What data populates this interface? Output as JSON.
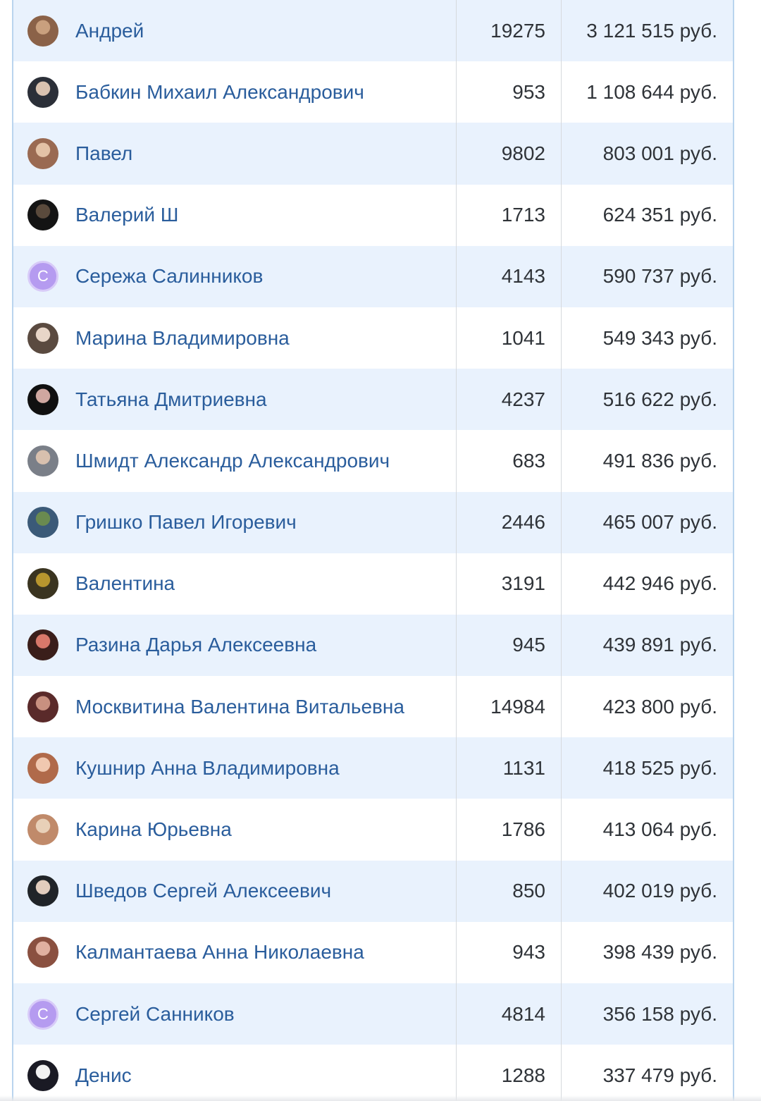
{
  "currency_suffix": "руб.",
  "rows": [
    {
      "name": "Андрей",
      "count": "19275",
      "sum": "3 121 515 руб.",
      "avatar": {
        "type": "photo",
        "colors": [
          "#8b6248",
          "#c9a07e"
        ]
      }
    },
    {
      "name": "Бабкин Михаил Александрович",
      "count": "953",
      "sum": "1 108 644 руб.",
      "avatar": {
        "type": "photo",
        "colors": [
          "#2b2f38",
          "#d9c2b0"
        ]
      }
    },
    {
      "name": "Павел",
      "count": "9802",
      "sum": "803 001 руб.",
      "avatar": {
        "type": "photo",
        "colors": [
          "#9a6a52",
          "#e3c2a6"
        ]
      }
    },
    {
      "name": "Валерий Ш",
      "count": "1713",
      "sum": "624 351 руб.",
      "avatar": {
        "type": "photo",
        "colors": [
          "#141414",
          "#5a4a3c"
        ]
      }
    },
    {
      "name": "Сережа Салинников",
      "count": "4143",
      "sum": "590 737 руб.",
      "avatar": {
        "type": "letter",
        "letter": "С",
        "color": "#b59bf0"
      }
    },
    {
      "name": "Марина Владимировна",
      "count": "1041",
      "sum": "549 343 руб.",
      "avatar": {
        "type": "photo",
        "colors": [
          "#5a4a40",
          "#e8d6c8"
        ]
      }
    },
    {
      "name": "Татьяна Дмитриевна",
      "count": "4237",
      "sum": "516 622 руб.",
      "avatar": {
        "type": "photo",
        "colors": [
          "#101010",
          "#cfa7a0"
        ]
      }
    },
    {
      "name": "Шмидт Александр Александрович",
      "count": "683",
      "sum": "491 836 руб.",
      "avatar": {
        "type": "photo",
        "colors": [
          "#7a7f88",
          "#d8c0ae"
        ]
      }
    },
    {
      "name": "Гришко Павел Игоревич",
      "count": "2446",
      "sum": "465 007 руб.",
      "avatar": {
        "type": "photo",
        "colors": [
          "#3b5a78",
          "#6a8a50"
        ]
      }
    },
    {
      "name": "Валентина",
      "count": "3191",
      "sum": "442 946 руб.",
      "avatar": {
        "type": "photo",
        "colors": [
          "#3a3420",
          "#b8962e"
        ]
      }
    },
    {
      "name": "Разина Дарья Алексеевна",
      "count": "945",
      "sum": "439 891 руб.",
      "avatar": {
        "type": "photo",
        "colors": [
          "#3a1e1a",
          "#d8786a"
        ]
      }
    },
    {
      "name": "Москвитина Валентина Витальевна",
      "count": "14984",
      "sum": "423 800 руб.",
      "avatar": {
        "type": "photo",
        "colors": [
          "#5a2a2a",
          "#c89080"
        ]
      }
    },
    {
      "name": "Кушнир Анна Владимировна",
      "count": "1131",
      "sum": "418 525 руб.",
      "avatar": {
        "type": "photo",
        "colors": [
          "#b06a4a",
          "#f0c8b0"
        ]
      }
    },
    {
      "name": "Карина Юрьевна",
      "count": "1786",
      "sum": "413 064 руб.",
      "avatar": {
        "type": "photo",
        "colors": [
          "#c08a6a",
          "#e8d0b8"
        ]
      }
    },
    {
      "name": "Шведов Сергей Алексеевич",
      "count": "850",
      "sum": "402 019 руб.",
      "avatar": {
        "type": "photo",
        "colors": [
          "#202428",
          "#e2cdbd"
        ]
      }
    },
    {
      "name": "Калмантаева Анна Николаевна",
      "count": "943",
      "sum": "398 439 руб.",
      "avatar": {
        "type": "photo",
        "colors": [
          "#8a5040",
          "#e0b0a0"
        ]
      }
    },
    {
      "name": "Сергей Санников",
      "count": "4814",
      "sum": "356 158 руб.",
      "avatar": {
        "type": "letter",
        "letter": "С",
        "color": "#b59bf0"
      }
    },
    {
      "name": "Денис",
      "count": "1288",
      "sum": "337 479 руб.",
      "avatar": {
        "type": "photo",
        "colors": [
          "#1a1a24",
          "#f2f2f2"
        ]
      }
    }
  ]
}
